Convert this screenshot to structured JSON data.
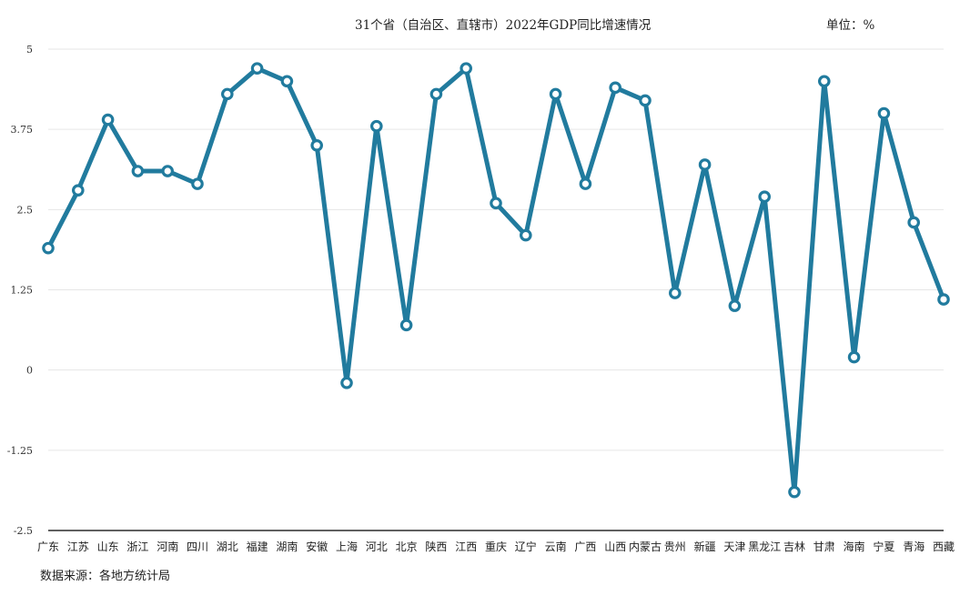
{
  "chart_data": {
    "type": "line",
    "title": "31个省（自治区、直辖市）2022年GDP同比增速情况",
    "unit_label": "单位：%",
    "source_label": "数据来源：各地方统计局",
    "x": [
      "广东",
      "江苏",
      "山东",
      "浙江",
      "河南",
      "四川",
      "湖北",
      "福建",
      "湖南",
      "安徽",
      "上海",
      "河北",
      "北京",
      "陕西",
      "江西",
      "重庆",
      "辽宁",
      "云南",
      "广西",
      "山西",
      "内蒙古",
      "贵州",
      "新疆",
      "天津",
      "黑龙江",
      "吉林",
      "甘肃",
      "海南",
      "宁夏",
      "青海",
      "西藏"
    ],
    "series": [
      {
        "values": [
          1.9,
          2.8,
          3.9,
          3.1,
          3.1,
          2.9,
          4.3,
          4.7,
          4.5,
          3.5,
          -0.2,
          3.8,
          0.7,
          4.3,
          4.7,
          2.6,
          2.1,
          4.3,
          2.9,
          4.4,
          4.2,
          1.2,
          3.2,
          1.0,
          2.7,
          -1.9,
          4.5,
          0.2,
          4.0,
          2.3,
          1.1
        ]
      }
    ],
    "yticks": [
      "5",
      "3.75",
      "2.5",
      "1.25",
      "0",
      "-1.25",
      "-2.5"
    ],
    "ylim": [
      -2.5,
      5
    ],
    "grid": true,
    "legend": "none",
    "line_color": "#217b9e"
  }
}
